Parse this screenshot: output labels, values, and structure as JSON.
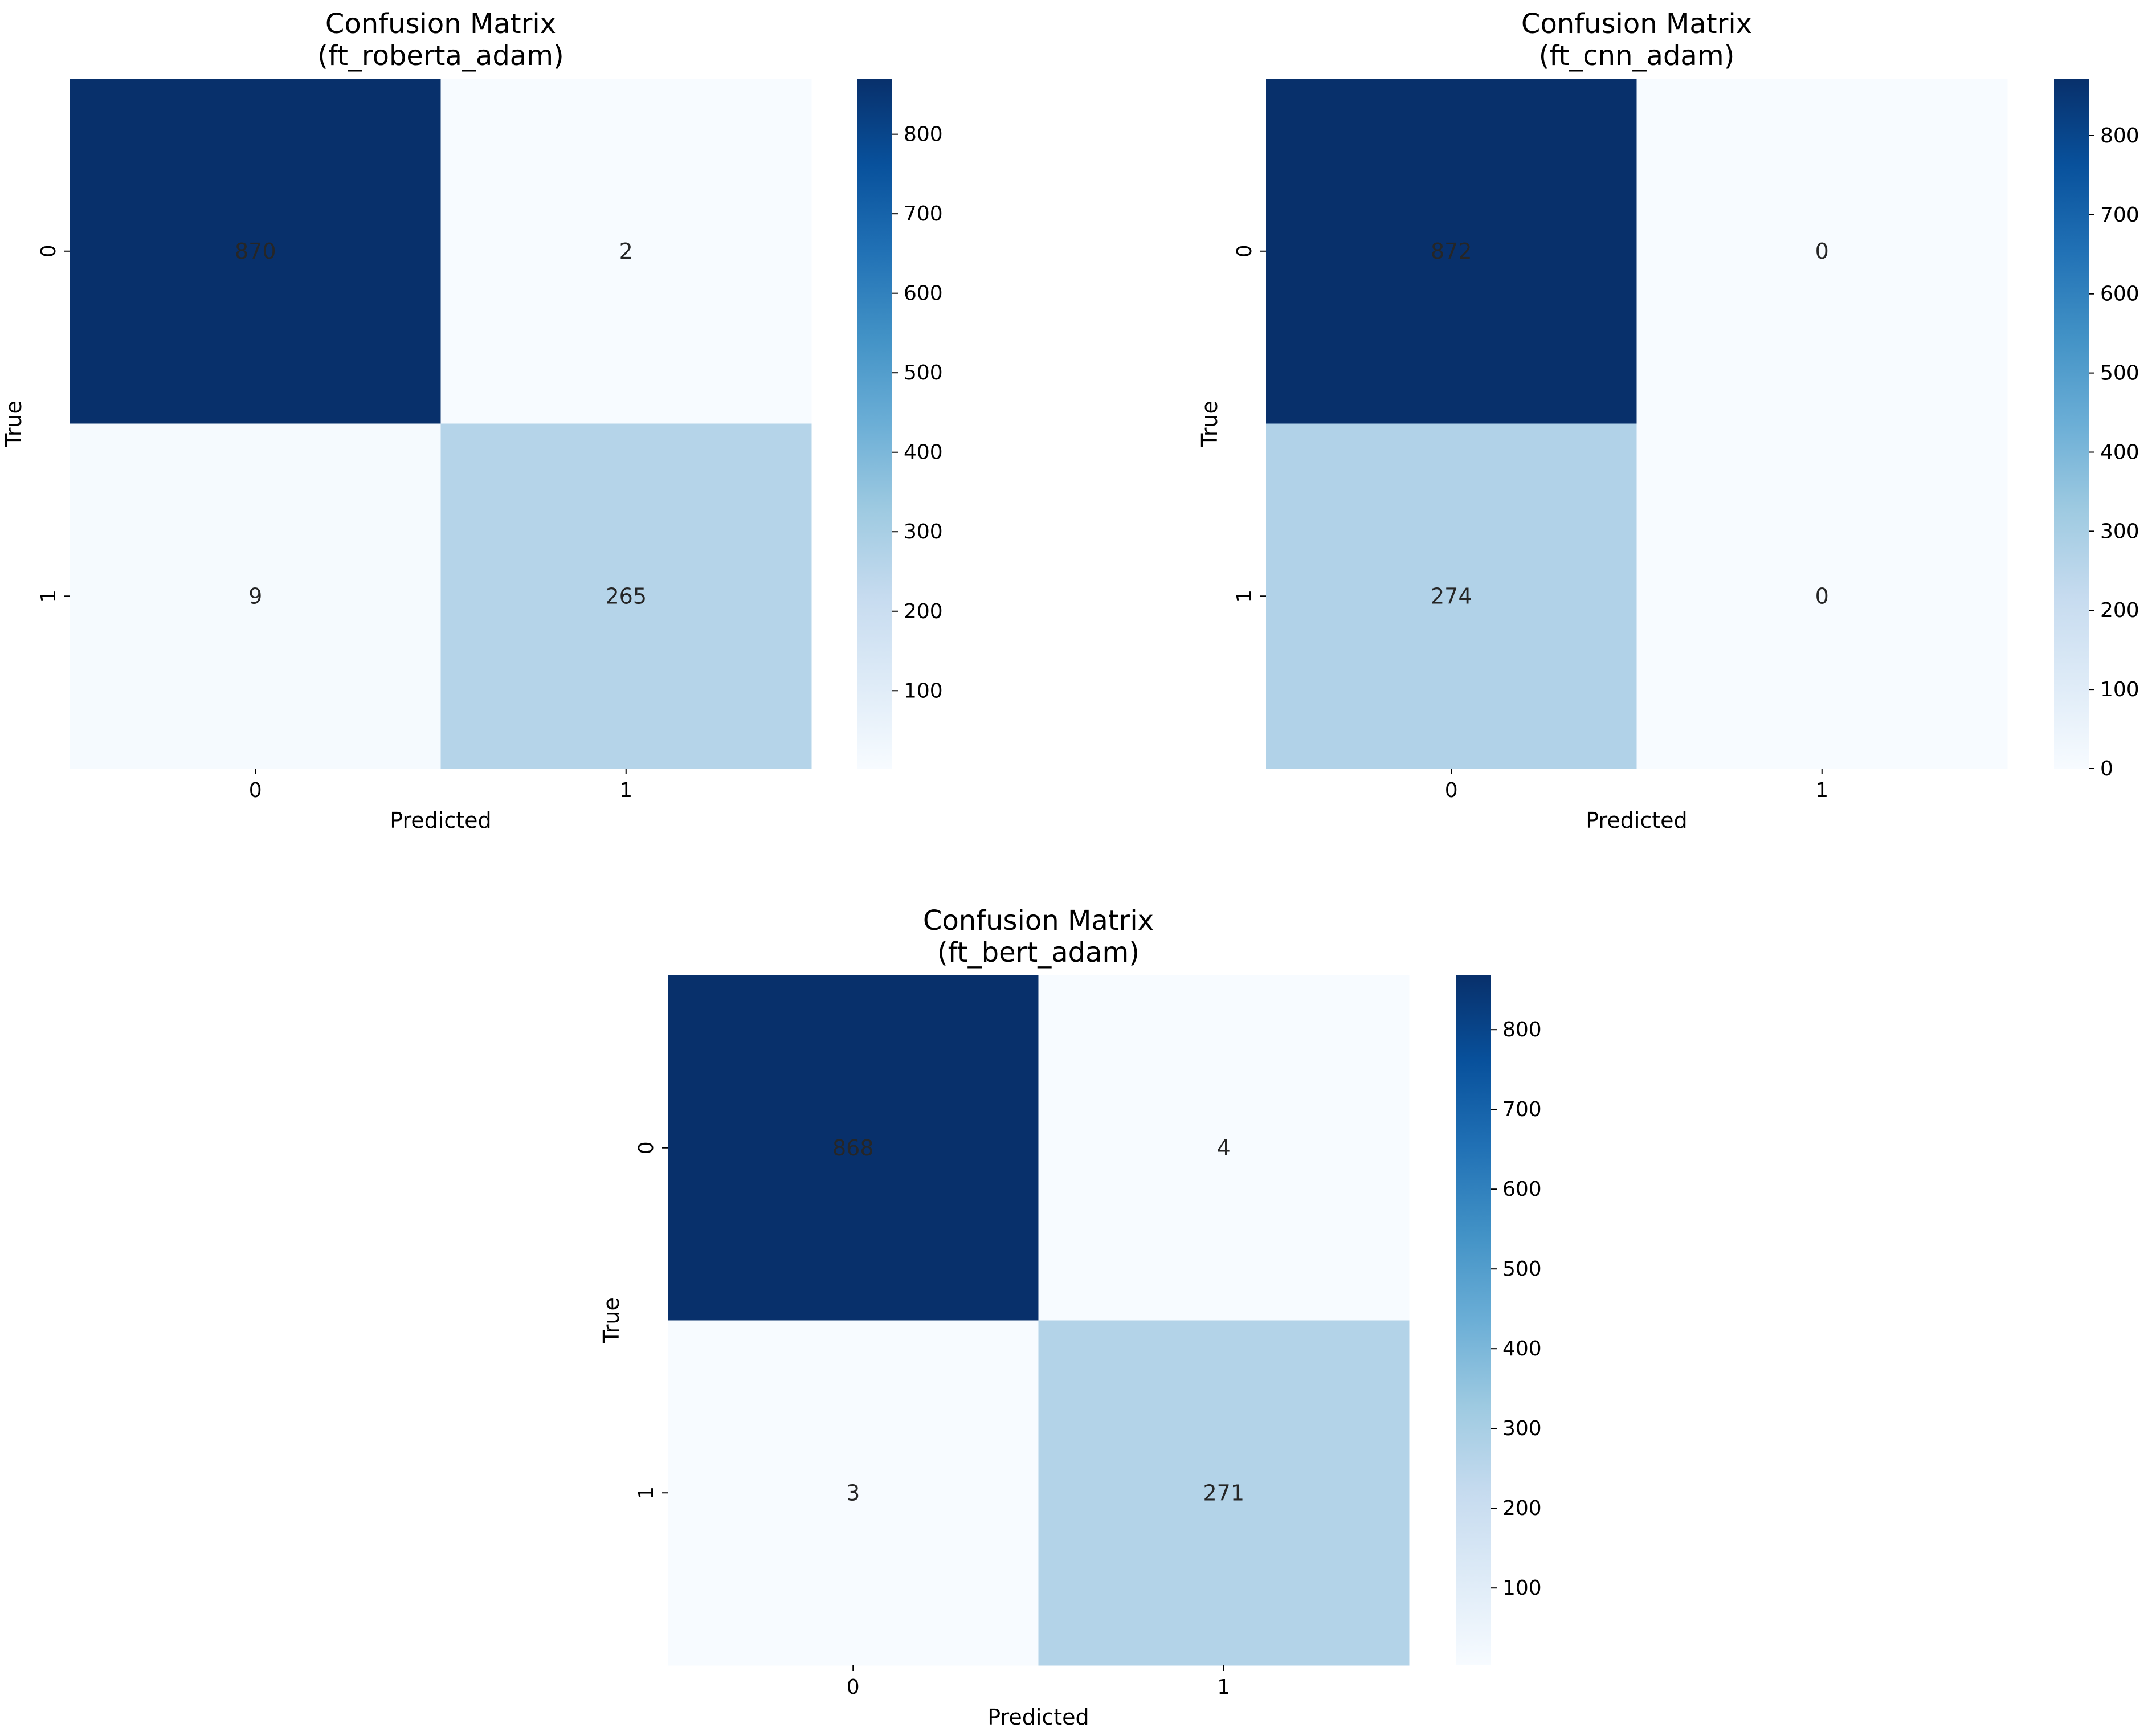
{
  "chart_data": [
    {
      "type": "heatmap",
      "title": "Confusion Matrix\n(ft_roberta_adam)",
      "xlabel": "Predicted",
      "ylabel": "True",
      "x_categories": [
        "0",
        "1"
      ],
      "y_categories": [
        "0",
        "1"
      ],
      "values": [
        [
          870,
          2
        ],
        [
          9,
          265
        ]
      ],
      "colormap": "Blues",
      "colorbar_range": [
        2,
        870
      ],
      "colorbar_ticks": [
        100,
        200,
        300,
        400,
        500,
        600,
        700,
        800
      ]
    },
    {
      "type": "heatmap",
      "title": "Confusion Matrix\n(ft_cnn_adam)",
      "xlabel": "Predicted",
      "ylabel": "True",
      "x_categories": [
        "0",
        "1"
      ],
      "y_categories": [
        "0",
        "1"
      ],
      "values": [
        [
          872,
          0
        ],
        [
          274,
          0
        ]
      ],
      "colormap": "Blues",
      "colorbar_range": [
        0,
        872
      ],
      "colorbar_ticks": [
        0,
        100,
        200,
        300,
        400,
        500,
        600,
        700,
        800
      ]
    },
    {
      "type": "heatmap",
      "title": "Confusion Matrix\n(ft_bert_adam)",
      "xlabel": "Predicted",
      "ylabel": "True",
      "x_categories": [
        "0",
        "1"
      ],
      "y_categories": [
        "0",
        "1"
      ],
      "values": [
        [
          868,
          4
        ],
        [
          3,
          271
        ]
      ],
      "colormap": "Blues",
      "colorbar_range": [
        3,
        868
      ],
      "colorbar_ticks": [
        100,
        200,
        300,
        400,
        500,
        600,
        700,
        800
      ]
    }
  ]
}
